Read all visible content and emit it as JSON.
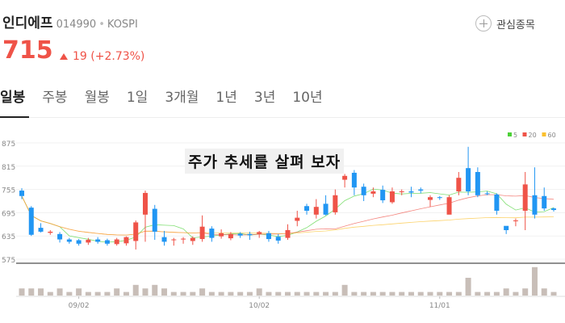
{
  "header": {
    "name": "인디에프",
    "code": "014990",
    "separator": "•",
    "market": "KOSPI",
    "watch_label": "관심종목"
  },
  "quote": {
    "price": "715",
    "change": "19 (+2.73%)",
    "direction": "up",
    "color_up": "#ef5348",
    "color_down": "#2196f3"
  },
  "tabs": [
    "일봉",
    "주봉",
    "월봉",
    "1일",
    "3개월",
    "1년",
    "3년",
    "10년"
  ],
  "active_tab": 0,
  "chart_data": {
    "type": "candlestick",
    "title": "주가 추세를 살펴 보자",
    "y_ticks": [
      "875",
      "815",
      "755",
      "695",
      "635",
      "575"
    ],
    "ylim": [
      575,
      875
    ],
    "x_ticks": [
      {
        "label": "09/02",
        "index": 6
      },
      {
        "label": "10/02",
        "index": 25
      },
      {
        "label": "11/01",
        "index": 44
      }
    ],
    "legend": [
      {
        "label": "5",
        "color": "#4cd137"
      },
      {
        "label": "20",
        "color": "#ef5348"
      },
      {
        "label": "60",
        "color": "#fbc02d"
      }
    ],
    "candles": [
      [
        752,
        738,
        758,
        730,
        2
      ],
      [
        708,
        638,
        712,
        635,
        2
      ],
      [
        656,
        646,
        668,
        644,
        2
      ],
      [
        643,
        646,
        650,
        638,
        1
      ],
      [
        640,
        626,
        645,
        618,
        2
      ],
      [
        626,
        620,
        630,
        615,
        1
      ],
      [
        624,
        615,
        627,
        610,
        2
      ],
      [
        618,
        625,
        630,
        612,
        1
      ],
      [
        626,
        620,
        632,
        615,
        1
      ],
      [
        624,
        615,
        628,
        610,
        1
      ],
      [
        614,
        626,
        630,
        610,
        2
      ],
      [
        616,
        632,
        634,
        610,
        1
      ],
      [
        622,
        670,
        675,
        600,
        3
      ],
      [
        690,
        746,
        752,
        620,
        2
      ],
      [
        705,
        646,
        715,
        625,
        3
      ],
      [
        632,
        620,
        648,
        610,
        2
      ],
      [
        624,
        626,
        630,
        610,
        1
      ],
      [
        626,
        628,
        632,
        615,
        1
      ],
      [
        622,
        630,
        634,
        612,
        1
      ],
      [
        627,
        659,
        688,
        620,
        2
      ],
      [
        654,
        630,
        660,
        620,
        1
      ],
      [
        634,
        642,
        652,
        628,
        1
      ],
      [
        629,
        640,
        645,
        624,
        1
      ],
      [
        641,
        636,
        645,
        630,
        1
      ],
      [
        640,
        637,
        646,
        625,
        1
      ],
      [
        640,
        645,
        648,
        630,
        2
      ],
      [
        642,
        627,
        648,
        620,
        1
      ],
      [
        633,
        623,
        640,
        615,
        1
      ],
      [
        630,
        650,
        665,
        625,
        1
      ],
      [
        674,
        682,
        700,
        660,
        1
      ],
      [
        712,
        700,
        718,
        690,
        1
      ],
      [
        690,
        710,
        730,
        680,
        1
      ],
      [
        718,
        690,
        740,
        688,
        1
      ],
      [
        696,
        740,
        755,
        690,
        1
      ],
      [
        780,
        790,
        795,
        760,
        3
      ],
      [
        798,
        760,
        805,
        740,
        1
      ],
      [
        762,
        740,
        770,
        725,
        1
      ],
      [
        744,
        750,
        760,
        735,
        1
      ],
      [
        754,
        727,
        765,
        720,
        1
      ],
      [
        722,
        750,
        760,
        718,
        1
      ],
      [
        750,
        750,
        755,
        740,
        1
      ],
      [
        750,
        747,
        762,
        735,
        1
      ],
      [
        755,
        752,
        760,
        745,
        1
      ],
      [
        728,
        735,
        740,
        710,
        1
      ],
      [
        735,
        734,
        738,
        728,
        1
      ],
      [
        690,
        735,
        740,
        720,
        1
      ],
      [
        750,
        785,
        800,
        740,
        1
      ],
      [
        810,
        750,
        865,
        740,
        5
      ],
      [
        800,
        740,
        812,
        735,
        1
      ],
      [
        745,
        744,
        750,
        740,
        1
      ],
      [
        742,
        700,
        745,
        690,
        1
      ],
      [
        661,
        650,
        660,
        640,
        2
      ],
      [
        674,
        675,
        680,
        660,
        1
      ],
      [
        700,
        768,
        800,
        650,
        2
      ],
      [
        740,
        690,
        812,
        680,
        8
      ],
      [
        738,
        706,
        760,
        700,
        2
      ],
      [
        706,
        702,
        708,
        698,
        1
      ]
    ]
  }
}
